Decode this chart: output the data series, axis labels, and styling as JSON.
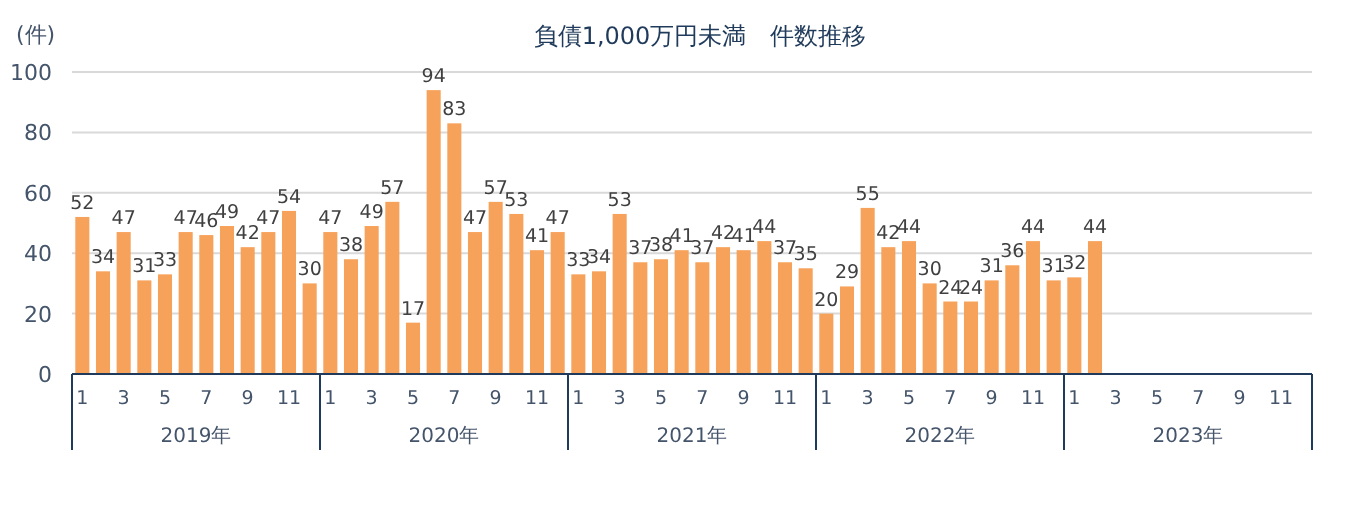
{
  "chart_data": {
    "type": "bar",
    "title": "負債1,000万円未満　件数推移",
    "ylabel": "(件)",
    "categories": [
      "1",
      null,
      "3",
      null,
      "5",
      null,
      "7",
      null,
      "9",
      null,
      "11",
      null,
      "1",
      null,
      "3",
      null,
      "5",
      null,
      "7",
      null,
      "9",
      null,
      "11",
      null,
      "1",
      null,
      "3",
      null,
      "5",
      null,
      "7",
      null,
      "9",
      null,
      "11",
      null,
      "1",
      null,
      "3",
      null,
      "5",
      null,
      "7",
      null,
      "9",
      null,
      "11",
      null,
      "1",
      null,
      "3",
      null,
      "5",
      null,
      "7",
      null,
      "9",
      null,
      "11",
      null
    ],
    "values": [
      52,
      34,
      47,
      31,
      33,
      47,
      46,
      49,
      42,
      47,
      54,
      30,
      47,
      38,
      49,
      57,
      17,
      94,
      83,
      47,
      57,
      53,
      41,
      47,
      33,
      34,
      53,
      37,
      38,
      41,
      37,
      42,
      41,
      44,
      37,
      35,
      20,
      29,
      55,
      42,
      44,
      30,
      24,
      24,
      31,
      36,
      44,
      31,
      32,
      44,
      null,
      null,
      null,
      null,
      null,
      null,
      null,
      null,
      null,
      null
    ],
    "color": "#f7a25a",
    "data_labels": true,
    "ylim": [
      0,
      100
    ],
    "yticks": [
      0,
      20,
      40,
      60,
      80,
      100
    ],
    "grid": "y",
    "annotations": [
      "2019年",
      "2020年",
      "2021年",
      "2022年",
      "2023年"
    ]
  }
}
